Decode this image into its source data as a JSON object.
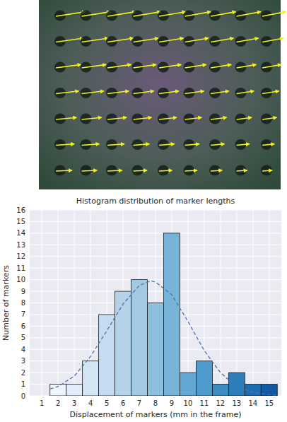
{
  "chart_data": {
    "type": "histogram",
    "title": "Histogram distribution of marker lengths",
    "x_label": "Displacement of markers (mm in the frame)",
    "y_label": "Number of markers",
    "bins": [
      1.5,
      2.5,
      3.5,
      4.5,
      5.5,
      6.5,
      7.5,
      8.5,
      9.5,
      10.5,
      11.5,
      12.5,
      13.5,
      14.5,
      15.5
    ],
    "values": [
      1,
      1,
      3,
      7,
      9,
      10,
      8,
      14,
      2,
      3,
      1,
      2,
      1,
      1
    ],
    "colors": [
      "#eef5fc",
      "#e1edf8",
      "#d3e4f3",
      "#c6dbef",
      "#b4d3e9",
      "#a2cbe3",
      "#8dc0dd",
      "#77b4d8",
      "#62a8d3",
      "#4f9bcb",
      "#3d8dc4",
      "#2d7dbb",
      "#1f6db1",
      "#0f5aa3"
    ],
    "series": [
      {
        "type": "line",
        "line_style": "dashed",
        "color": "#4c72b0",
        "x": [
          1.5,
          2,
          3,
          4,
          5,
          6,
          7,
          7.7,
          8,
          9,
          10,
          11,
          12,
          13,
          14,
          15,
          15.5
        ],
        "values": [
          0.6,
          0.8,
          1.7,
          3.4,
          5.6,
          7.9,
          9.5,
          9.9,
          9.8,
          8.7,
          6.4,
          3.9,
          2.0,
          0.8,
          0.3,
          0.1,
          0.05
        ]
      }
    ],
    "xlim": [
      0.25,
      15.75
    ],
    "ylim": [
      0,
      16
    ],
    "xticks": [
      1,
      2,
      3,
      4,
      5,
      6,
      7,
      8,
      9,
      10,
      11,
      12,
      13,
      14,
      15
    ],
    "yticks": [
      0,
      1,
      2,
      3,
      4,
      5,
      6,
      7,
      8,
      9,
      10,
      11,
      12,
      13,
      14,
      15,
      16
    ],
    "grid": true
  }
}
